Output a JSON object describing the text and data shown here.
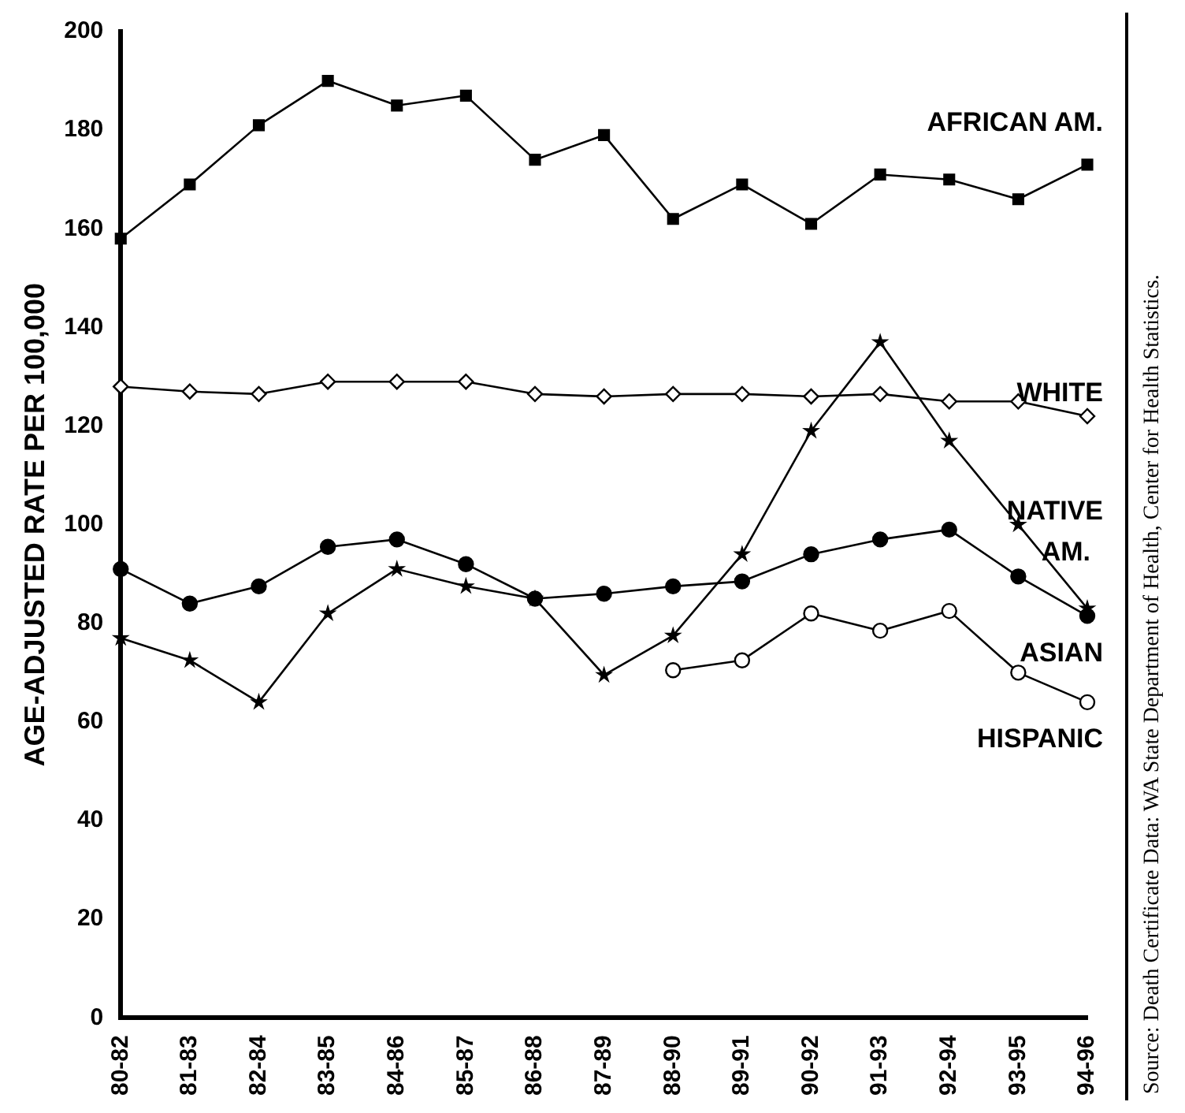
{
  "chart_data": {
    "type": "line",
    "ylabel": "AGE-ADJUSTED RATE PER 100,000",
    "categories": [
      "80-82",
      "81-83",
      "82-84",
      "83-85",
      "84-86",
      "85-87",
      "86-88",
      "87-89",
      "88-90",
      "89-91",
      "90-92",
      "91-93",
      "92-94",
      "93-95",
      "94-96"
    ],
    "series": [
      {
        "name": "AFRICAN AM.",
        "color": "#000000",
        "marker": "square",
        "values": [
          158,
          169,
          181,
          190,
          185,
          187,
          174,
          179,
          162,
          169,
          161,
          171,
          170,
          166,
          173
        ]
      },
      {
        "name": "WHITE",
        "color": "#000000",
        "marker": "diamond",
        "values": [
          128,
          127,
          126.5,
          129,
          129,
          129,
          126.5,
          126,
          126.5,
          126.5,
          126,
          126.5,
          125,
          125,
          122
        ]
      },
      {
        "name": "NATIVE AM.",
        "color": "#000000",
        "marker": "star",
        "values": [
          77,
          72.5,
          64,
          82,
          91,
          87.5,
          85,
          69.5,
          77.5,
          94,
          119,
          137,
          117,
          100,
          83
        ]
      },
      {
        "name": "ASIAN",
        "color": "#000000",
        "marker": "circle",
        "values": [
          91,
          84,
          87.5,
          95.5,
          97,
          92,
          85,
          86,
          87.5,
          88.5,
          94,
          97,
          99,
          89.5,
          81.5
        ]
      },
      {
        "name": "HISPANIC",
        "color": "#000000",
        "marker": "circle",
        "values": [
          null,
          null,
          null,
          null,
          null,
          null,
          null,
          null,
          70.5,
          72.5,
          82,
          78.5,
          82.5,
          70,
          64
        ]
      }
    ],
    "ylim": [
      0,
      200
    ],
    "yticks": [
      0,
      20,
      40,
      60,
      80,
      100,
      120,
      140,
      160,
      180,
      200
    ],
    "grid": false,
    "legend": false,
    "line_style": "solid",
    "annotations": [
      "Source:  Death Certificate Data: WA State Department of Health, Center for Health Statistics."
    ]
  }
}
